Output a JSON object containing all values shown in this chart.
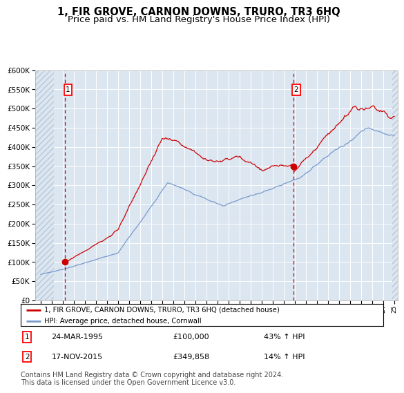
{
  "title": "1, FIR GROVE, CARNON DOWNS, TRURO, TR3 6HQ",
  "subtitle": "Price paid vs. HM Land Registry's House Price Index (HPI)",
  "title_fontsize": 10.5,
  "subtitle_fontsize": 9.5,
  "background_color": "#dce6f1",
  "hatch_color": "#b8c8d8",
  "red_line_color": "#cc0000",
  "blue_line_color": "#7799cc",
  "marker_color": "#cc0000",
  "vline_color": "#cc0000",
  "ylim": [
    0,
    600000
  ],
  "ytick_step": 50000,
  "sale1_date": 1995.23,
  "sale1_price": 100000,
  "sale2_date": 2015.88,
  "sale2_price": 349858,
  "legend_line1": "1, FIR GROVE, CARNON DOWNS, TRURO, TR3 6HQ (detached house)",
  "legend_line2": "HPI: Average price, detached house, Cornwall",
  "table_row1_label": "1",
  "table_row1_date": "24-MAR-1995",
  "table_row1_price": "£100,000",
  "table_row1_hpi": "43% ↑ HPI",
  "table_row2_label": "2",
  "table_row2_date": "17-NOV-2015",
  "table_row2_price": "£349,858",
  "table_row2_hpi": "14% ↑ HPI",
  "footer": "Contains HM Land Registry data © Crown copyright and database right 2024.\nThis data is licensed under the Open Government Licence v3.0.",
  "footer_fontsize": 7,
  "xstart": 1993,
  "xend": 2025
}
